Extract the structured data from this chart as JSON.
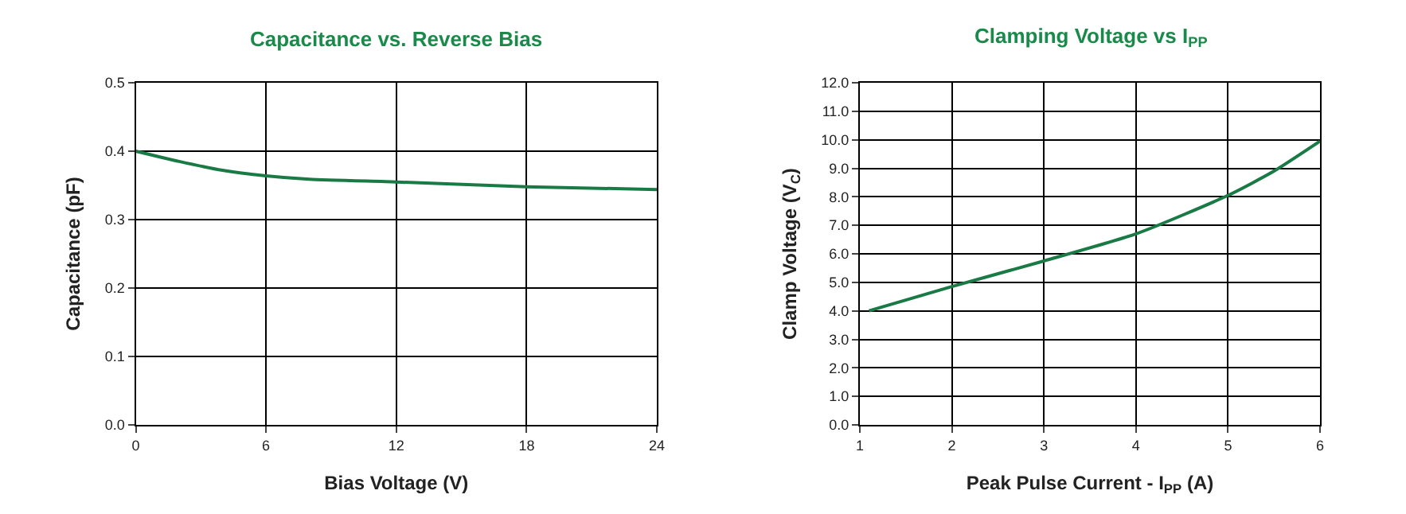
{
  "chart_data": [
    {
      "type": "line",
      "title": "Capacitance vs. Reverse Bias",
      "xlabel": "Bias Voltage (V)",
      "ylabel": "Capacitance (pF)",
      "x": [
        0,
        2,
        4,
        6,
        8,
        12,
        18,
        24
      ],
      "series": [
        {
          "color": "#1a7a45",
          "values": [
            0.4,
            0.385,
            0.372,
            0.364,
            0.359,
            0.355,
            0.348,
            0.344
          ]
        }
      ],
      "xlim": [
        0,
        24
      ],
      "xticks": [
        0,
        6,
        12,
        18,
        24
      ],
      "ylim": [
        0,
        0.5
      ],
      "yticks": [
        {
          "value": 0,
          "label": "0.0"
        },
        0.1,
        0.2,
        0.3,
        0.4,
        0.5
      ],
      "grid": true
    },
    {
      "type": "line",
      "title": "Clamping Voltage vs I$_{PP}$",
      "xlabel": "Peak Pulse Current - I$_{PP}$ (A)",
      "ylabel": "Clamp Voltage (V$_{C}$)",
      "x": [
        1.1,
        2,
        3,
        4,
        5,
        5.5,
        6
      ],
      "series": [
        {
          "color": "#1a7a45",
          "values": [
            4.0,
            4.85,
            5.75,
            6.7,
            8.05,
            8.9,
            9.95
          ]
        }
      ],
      "xlim": [
        1,
        6
      ],
      "xticks": [
        1,
        2,
        3,
        4,
        5,
        6
      ],
      "ylim": [
        0,
        12
      ],
      "yticks": [
        {
          "value": 0,
          "label": "0.0"
        },
        {
          "value": 1,
          "label": "1.0"
        },
        {
          "value": 2,
          "label": "2.0"
        },
        {
          "value": 3,
          "label": "3.0"
        },
        {
          "value": 4,
          "label": "4.0"
        },
        {
          "value": 5,
          "label": "5.0"
        },
        {
          "value": 6,
          "label": "6.0"
        },
        {
          "value": 7,
          "label": "7.0"
        },
        {
          "value": 8,
          "label": "8.0"
        },
        {
          "value": 9,
          "label": "9.0"
        },
        {
          "value": 10,
          "label": "10.0"
        },
        {
          "value": 11,
          "label": "11.0"
        },
        {
          "value": 12,
          "label": "12.0"
        }
      ],
      "grid": true
    }
  ]
}
